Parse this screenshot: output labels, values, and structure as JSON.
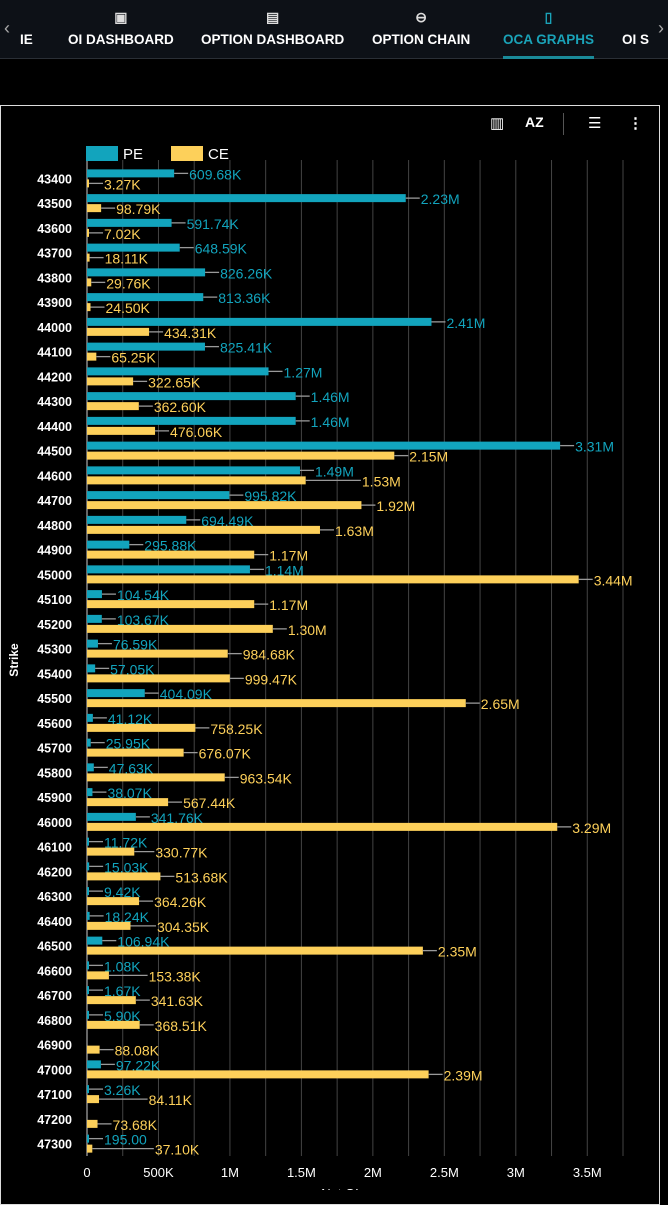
{
  "nav": {
    "tabs": [
      {
        "label": "IE",
        "icon": "none"
      },
      {
        "label": "OI DASHBOARD",
        "icon": "dashboard-icon"
      },
      {
        "label": "OPTION DASHBOARD",
        "icon": "bar-chart-icon"
      },
      {
        "label": "OPTION CHAIN",
        "icon": "link-icon"
      },
      {
        "label": "OCA GRAPHS",
        "icon": "document-icon",
        "active": true
      },
      {
        "label": "OI S",
        "icon": "none"
      }
    ]
  },
  "toolbar": {
    "icons": [
      "chart-settings-icon",
      "sort-az-icon",
      "filter-icon",
      "more-vert-icon"
    ]
  },
  "colors": {
    "PE": "#12a4bd",
    "CE": "#fdd05a",
    "accent": "#1aa3b8"
  },
  "chart_data": {
    "type": "bar",
    "orientation": "horizontal",
    "ylabel": "Strike",
    "xlabel": "Net OI",
    "xlim": [
      0,
      3750000
    ],
    "xticks": [
      "0",
      "500K",
      "1M",
      "1.5M",
      "2M",
      "2.5M",
      "3M",
      "3.5M"
    ],
    "xtick_values": [
      0,
      500000,
      1000000,
      1500000,
      2000000,
      2500000,
      3000000,
      3500000
    ],
    "grid": true,
    "legend": "top-left",
    "categories": [
      "43400",
      "43500",
      "43600",
      "43700",
      "43800",
      "43900",
      "44000",
      "44100",
      "44200",
      "44300",
      "44400",
      "44500",
      "44600",
      "44700",
      "44800",
      "44900",
      "45000",
      "45100",
      "45200",
      "45300",
      "45400",
      "45500",
      "45600",
      "45700",
      "45800",
      "45900",
      "46000",
      "46100",
      "46200",
      "46300",
      "46400",
      "46500",
      "46600",
      "46700",
      "46800",
      "46900",
      "47000",
      "47100",
      "47200",
      "47300"
    ],
    "series": [
      {
        "name": "PE",
        "values": [
          609680,
          2230000,
          591740,
          648590,
          826260,
          813360,
          2410000,
          825410,
          1270000,
          1460000,
          1460000,
          3310000,
          1490000,
          995820,
          694490,
          295880,
          1140000,
          104540,
          103670,
          76590,
          57050,
          404090,
          41120,
          25950,
          47630,
          38070,
          341760,
          11720,
          15030,
          9420,
          18240,
          106940,
          1080,
          1670,
          5900,
          0,
          97220,
          3260,
          0,
          195
        ],
        "labels": [
          "609.68K",
          "2.23M",
          "591.74K",
          "648.59K",
          "826.26K",
          "813.36K",
          "2.41M",
          "825.41K",
          "1.27M",
          "1.46M",
          "1.46M",
          "3.31M",
          "1.49M",
          "995.82K",
          "694.49K",
          "295.88K",
          "1.14M",
          "104.54K",
          "103.67K",
          "76.59K",
          "57.05K",
          "404.09K",
          "41.12K",
          "25.95K",
          "47.63K",
          "38.07K",
          "341.76K",
          "11.72K",
          "15.03K",
          "9.42K",
          "18.24K",
          "106.94K",
          "1.08K",
          "1.67K",
          "5.90K",
          "",
          "97.22K",
          "3.26K",
          "",
          "195.00"
        ]
      },
      {
        "name": "CE",
        "values": [
          3270,
          98790,
          7020,
          18110,
          29760,
          24500,
          434310,
          65250,
          322650,
          362600,
          476060,
          2150000,
          1530000,
          1920000,
          1630000,
          1170000,
          3440000,
          1170000,
          1300000,
          984680,
          999470,
          2650000,
          758250,
          676070,
          963540,
          567440,
          3290000,
          330770,
          513680,
          364260,
          304350,
          2350000,
          153380,
          341630,
          368510,
          88080,
          2390000,
          84110,
          73680,
          37100
        ],
        "labels": [
          "3.27K",
          "98.79K",
          "7.02K",
          "18.11K",
          "29.76K",
          "24.50K",
          "434.31K",
          "65.25K",
          "322.65K",
          "362.60K",
          "476.06K",
          "2.15M",
          "1.53M",
          "1.92M",
          "1.63M",
          "1.17M",
          "3.44M",
          "1.17M",
          "1.30M",
          "984.68K",
          "999.47K",
          "2.65M",
          "758.25K",
          "676.07K",
          "963.54K",
          "567.44K",
          "3.29M",
          "330.77K",
          "513.68K",
          "364.26K",
          "304.35K",
          "2.35M",
          "153.38K",
          "341.63K",
          "368.51K",
          "88.08K",
          "2.39M",
          "84.11K",
          "73.68K",
          "37.10K"
        ]
      }
    ]
  }
}
